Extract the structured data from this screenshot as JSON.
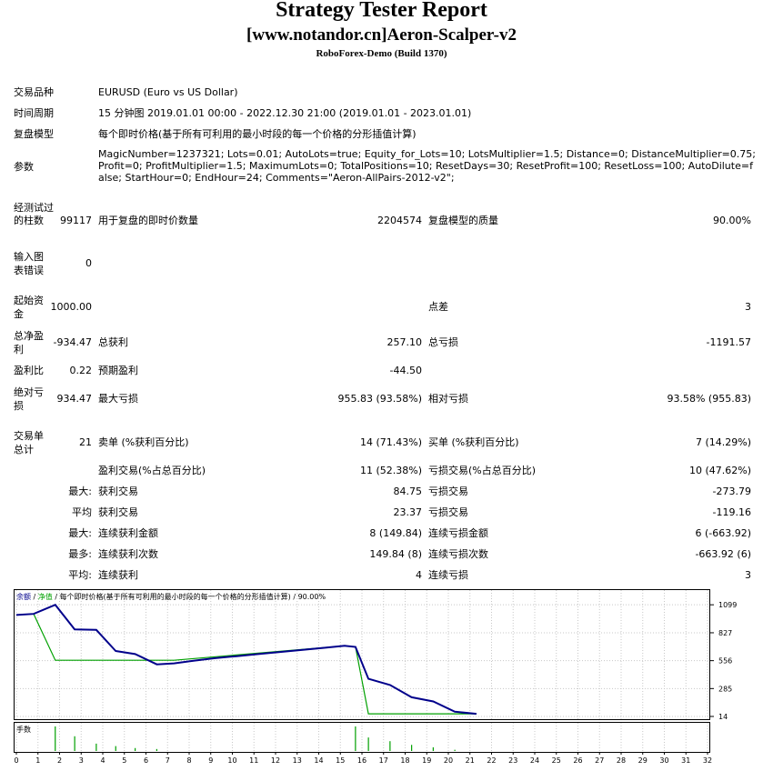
{
  "report": {
    "title": "Strategy Tester Report",
    "subtitle": "[www.notandor.cn]Aeron-Scalper-v2",
    "server": "RoboForex-Demo (Build 1370)"
  },
  "info": {
    "symbol_label": "交易品种",
    "symbol_value": "EURUSD (Euro vs US Dollar)",
    "period_label": "时间周期",
    "period_value": "15 分钟图 2019.01.01 00:00 - 2022.12.30 21:00 (2019.01.01 - 2023.01.01)",
    "model_label": "复盘模型",
    "model_value": "每个即时价格(基于所有可利用的最小时段的每一个价格的分形插值计算)",
    "params_label": "参数",
    "params_value": "MagicNumber=1237321; Lots=0.01; AutoLots=true; Equity_for_Lots=10; LotsMultiplier=1.5; Distance=0; DistanceMultiplier=0.75; Profit=0; ProfitMultiplier=1.5; MaximumLots=0; TotalPositions=10; ResetDays=30; ResetProfit=100; ResetLoss=100; AutoDilute=false; StartHour=0; EndHour=24; Comments=\"Aeron-AllPairs-2012-v2\";"
  },
  "stats": {
    "bars_label": "经测试过的柱数",
    "bars_value": "99117",
    "ticks_label": "用于复盘的即时价数量",
    "ticks_value": "2204574",
    "quality_label": "复盘模型的质量",
    "quality_value": "90.00%",
    "errors_label": "输入图表错误",
    "errors_value": "0",
    "deposit_label": "起始资金",
    "deposit_value": "1000.00",
    "spread_label": "点差",
    "spread_value": "3",
    "net_label": "总净盈利",
    "net_value": "-934.47",
    "gross_profit_label": "总获利",
    "gross_profit_value": "257.10",
    "gross_loss_label": "总亏损",
    "gross_loss_value": "-1191.57",
    "pf_label": "盈利比",
    "pf_value": "0.22",
    "payoff_label": "预期盈利",
    "payoff_value": "-44.50",
    "abs_dd_label": "绝对亏损",
    "abs_dd_value": "934.47",
    "max_dd_label": "最大亏损",
    "max_dd_value": "955.83 (93.58%)",
    "rel_dd_label": "相对亏损",
    "rel_dd_value": "93.58% (955.83)",
    "trades_label": "交易单总计",
    "trades_value": "21",
    "short_label": "卖单 (%获利百分比)",
    "short_value": "14 (71.43%)",
    "long_label": "买单 (%获利百分比)",
    "long_value": "7 (14.29%)",
    "profit_trades_label": "盈利交易(%占总百分比)",
    "profit_trades_value": "11 (52.38%)",
    "loss_trades_label": "亏损交易(%占总百分比)",
    "loss_trades_value": "10 (47.62%)",
    "rows": [
      {
        "prefix": "最大:",
        "l1": "获利交易",
        "v1": "84.75",
        "l2": "亏损交易",
        "v2": "-273.79"
      },
      {
        "prefix": "平均",
        "l1": "获利交易",
        "v1": "23.37",
        "l2": "亏损交易",
        "v2": "-119.16"
      },
      {
        "prefix": "最大:",
        "l1": "连续获利金额",
        "v1": "8 (149.84)",
        "l2": "连续亏损金额",
        "v2": "6 (-663.92)"
      },
      {
        "prefix": "最多:",
        "l1": "连续获利次数",
        "v1": "149.84 (8)",
        "l2": "连续亏损次数",
        "v2": "-663.92 (6)"
      },
      {
        "prefix": "平均:",
        "l1": "连续获利",
        "v1": "4",
        "l2": "连续亏损",
        "v2": "3"
      }
    ]
  },
  "chart_data": {
    "type": "line",
    "legend": {
      "balance": "余额",
      "equity": "净值",
      "rest": " / 每个即时价格(基于所有可利用的最小时段的每一个价格的分形插值计算) / 90.00%"
    },
    "volume_label": "手数",
    "colors": {
      "balance": "#00008b",
      "equity": "#00a000",
      "volume": "#00a000",
      "grid": "#c8c8c8"
    },
    "ylim": [
      14,
      1180
    ],
    "y_ticks": [
      1099,
      827,
      556,
      285,
      14
    ],
    "xlim": [
      0,
      32
    ],
    "x_ticks": [
      0,
      1,
      2,
      3,
      4,
      5,
      6,
      7,
      8,
      9,
      10,
      11,
      12,
      13,
      14,
      15,
      16,
      17,
      18,
      19,
      20,
      21,
      22,
      23,
      24,
      25,
      26,
      27,
      28,
      29,
      30,
      31,
      32
    ],
    "series": [
      {
        "name": "余额",
        "x": [
          0,
          0.8,
          1.8,
          2.7,
          3.7,
          4.6,
          5.5,
          6.5,
          7.3,
          8.2,
          9.2,
          10.2,
          11.2,
          12.2,
          13.2,
          14.2,
          15.2,
          15.7,
          16.3,
          17.3,
          18.3,
          19.3,
          20.3,
          21.3
        ],
        "y": [
          1000,
          1010,
          1099,
          860,
          855,
          650,
          620,
          520,
          530,
          555,
          580,
          600,
          620,
          640,
          660,
          680,
          700,
          690,
          380,
          320,
          200,
          160,
          60,
          40
        ]
      },
      {
        "name": "净值",
        "x": [
          0,
          0.8,
          1.8,
          2.7,
          7.3,
          15.2,
          15.7,
          16.3,
          21.3
        ],
        "y": [
          1000,
          1010,
          560,
          560,
          560,
          700,
          690,
          40,
          40
        ]
      }
    ],
    "volume": {
      "x": [
        1.8,
        2.7,
        3.7,
        4.6,
        5.5,
        6.5,
        15.7,
        16.3,
        17.3,
        18.3,
        19.3,
        20.3
      ],
      "y": [
        1,
        0.6,
        0.3,
        0.2,
        0.12,
        0.08,
        1,
        0.55,
        0.4,
        0.25,
        0.15,
        0.05
      ]
    }
  }
}
